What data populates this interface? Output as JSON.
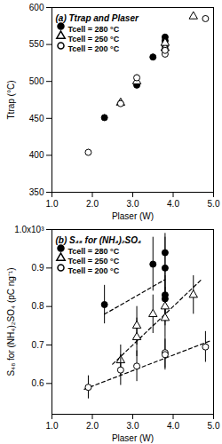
{
  "chart_data": [
    {
      "type": "scatter",
      "title": "(a) Ttrap and Plaser",
      "x_label": "Plaser (W)",
      "y_label": "Ttrap (°C)",
      "xlim": [
        1,
        5
      ],
      "xticks": [
        {
          "value": 1,
          "label": "1.0"
        },
        {
          "value": 2,
          "label": "2.0"
        },
        {
          "value": 3,
          "label": "3.0"
        },
        {
          "value": 4,
          "label": "4.0"
        },
        {
          "value": 5,
          "label": "5.0"
        }
      ],
      "ylim": [
        350,
        600
      ],
      "yticks": [
        350,
        400,
        450,
        500,
        550,
        600
      ],
      "grid": false,
      "legend": "top-left",
      "series": [
        {
          "name": "Tcell = 280 °C",
          "color": "#000000",
          "marker": "filled-circle",
          "x": [
            2.3,
            3.1,
            3.5,
            3.8,
            3.8,
            3.8
          ],
          "values": [
            451,
            495,
            533,
            548,
            555,
            560
          ],
          "errors": [
            4,
            4,
            4,
            4,
            4,
            4
          ]
        },
        {
          "name": "Tcell = 250 °C",
          "color": "#000000",
          "marker": "open-triangle",
          "x": [
            2.7,
            3.1,
            3.8,
            3.8,
            4.5
          ],
          "values": [
            471,
            500,
            545,
            552,
            588
          ],
          "errors": [
            4,
            4,
            4,
            4,
            4
          ]
        },
        {
          "name": "Tcell = 200 °C",
          "color": "#000000",
          "marker": "open-circle",
          "x": [
            1.9,
            2.7,
            3.1,
            3.8,
            3.8,
            4.8
          ],
          "values": [
            404,
            470,
            505,
            537,
            542,
            585
          ],
          "errors": [
            4,
            4,
            4,
            4,
            4,
            4
          ]
        }
      ]
    },
    {
      "type": "scatter",
      "title": "(b) S₄₈ for (NH₄)₂SO₄",
      "x_label": "Plaser (W)",
      "y_label": "S₄₈ for (NH₄)₂SO₄ (pC ng⁻¹)",
      "xlim": [
        1,
        5
      ],
      "xticks": [
        {
          "value": 1,
          "label": "1.0"
        },
        {
          "value": 2,
          "label": "2.0"
        },
        {
          "value": 3,
          "label": "3.0"
        },
        {
          "value": 4,
          "label": "4.0"
        },
        {
          "value": 5,
          "label": "5.0"
        }
      ],
      "ylim": [
        0.52,
        1
      ],
      "yticks": [
        0.6,
        0.7,
        0.8,
        0.9,
        {
          "value": 1,
          "label": "1.0x10³"
        }
      ],
      "grid": false,
      "legend": "top-left",
      "series": [
        {
          "name": "Tcell = 280 °C",
          "color": "#000000",
          "marker": "filled-circle",
          "x": [
            2.3,
            3.5,
            3.8,
            3.8,
            3.8,
            3.8
          ],
          "values": [
            0.805,
            0.91,
            0.94,
            0.9,
            0.83,
            0.82
          ],
          "errors": [
            0.05,
            0.07,
            0.05,
            0.08,
            0.06,
            0.06
          ],
          "fit": {
            "x": [
              2.3,
              3.8
            ],
            "values": [
              0.78,
              0.87
            ],
            "line_style": "dashed"
          }
        },
        {
          "name": "Tcell = 250 °C",
          "color": "#000000",
          "marker": "open-triangle",
          "x": [
            2.7,
            3.1,
            3.1,
            3.5,
            3.8,
            3.8,
            4.5
          ],
          "values": [
            0.66,
            0.75,
            0.72,
            0.78,
            0.8,
            0.77,
            0.83
          ],
          "errors": [
            0.04,
            0.05,
            0.05,
            0.05,
            0.05,
            0.05,
            0.05
          ],
          "fit": {
            "x": [
              2.5,
              4.7
            ],
            "values": [
              0.65,
              0.87
            ],
            "line_style": "dashed"
          }
        },
        {
          "name": "Tcell = 200 °C",
          "color": "#000000",
          "marker": "open-circle",
          "x": [
            1.9,
            2.7,
            3.1,
            3.8,
            3.8,
            4.8
          ],
          "values": [
            0.59,
            0.635,
            0.645,
            0.68,
            0.675,
            0.695
          ],
          "errors": [
            0.03,
            0.04,
            0.04,
            0.04,
            0.04,
            0.04
          ],
          "fit": {
            "x": [
              1.8,
              4.9
            ],
            "values": [
              0.585,
              0.71
            ],
            "line_style": "dashed"
          }
        }
      ]
    }
  ]
}
